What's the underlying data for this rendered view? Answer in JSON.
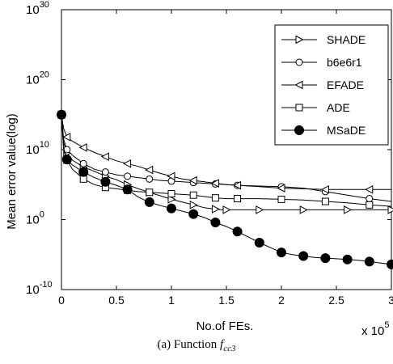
{
  "chart_data": {
    "type": "line",
    "title": "",
    "xlabel": "No.of FEs.",
    "x_multiplier": "x 10",
    "x_multiplier_exponent": "5",
    "ylabel": "Mean error value(log)",
    "yscale": "log",
    "xlim": [
      0,
      3
    ],
    "ylim_exponent": [
      -10,
      30
    ],
    "x_ticks": [
      "0",
      "0.5",
      "1",
      "1.5",
      "2",
      "2.5",
      "3"
    ],
    "y_ticks": [
      {
        "base": "10",
        "exp": "30"
      },
      {
        "base": "10",
        "exp": "20"
      },
      {
        "base": "10",
        "exp": "10"
      },
      {
        "base": "10",
        "exp": "0"
      },
      {
        "base": "10",
        "exp": "-10"
      }
    ],
    "legend_position": "top-right",
    "grid": false,
    "series": [
      {
        "name": "SHADE",
        "marker": "triangle-right",
        "filled": false,
        "x": [
          0,
          0.02,
          0.05,
          0.1,
          0.2,
          0.3,
          0.4,
          0.5,
          0.6,
          0.7,
          0.8,
          0.9,
          1.0,
          1.1,
          1.2,
          1.3,
          1.4,
          1.45,
          1.5,
          1.6,
          1.8,
          2.0,
          2.2,
          2.4,
          2.6,
          2.8,
          3.0
        ],
        "log10_y": [
          15,
          11,
          9.5,
          8.5,
          7.5,
          6.9,
          6.2,
          5.7,
          5.0,
          4.4,
          3.9,
          3.4,
          2.9,
          2.5,
          2.1,
          1.7,
          1.5,
          1.4,
          1.4,
          1.4,
          1.4,
          1.4,
          1.4,
          1.4,
          1.4,
          1.4,
          1.4
        ]
      },
      {
        "name": "b6e6r1",
        "marker": "circle",
        "filled": false,
        "x": [
          0,
          0.02,
          0.05,
          0.1,
          0.2,
          0.3,
          0.4,
          0.5,
          0.6,
          0.7,
          0.8,
          0.9,
          1.0,
          1.1,
          1.2,
          1.3,
          1.4,
          1.5,
          1.6,
          1.8,
          2.0,
          2.2,
          2.4,
          2.6,
          2.8,
          3.0
        ],
        "log10_y": [
          15,
          11.5,
          10,
          9.2,
          8.0,
          7.2,
          6.8,
          6.4,
          6.2,
          6.0,
          5.8,
          5.6,
          5.5,
          5.4,
          5.3,
          5.2,
          5.1,
          5.0,
          4.9,
          4.8,
          4.7,
          4.5,
          4.0,
          3.5,
          3.0,
          2.6
        ]
      },
      {
        "name": "EFADE",
        "marker": "triangle-left",
        "filled": false,
        "x": [
          0,
          0.02,
          0.05,
          0.1,
          0.2,
          0.3,
          0.4,
          0.5,
          0.6,
          0.7,
          0.8,
          0.9,
          1.0,
          1.1,
          1.2,
          1.3,
          1.4,
          1.5,
          1.6,
          1.8,
          2.0,
          2.2,
          2.4,
          2.6,
          2.8,
          3.0
        ],
        "log10_y": [
          15,
          13,
          11.8,
          11.2,
          10.3,
          9.6,
          9.0,
          8.4,
          8.0,
          7.6,
          7.1,
          6.6,
          6.2,
          5.8,
          5.6,
          5.4,
          5.2,
          5.0,
          4.9,
          4.7,
          4.5,
          4.4,
          4.3,
          4.3,
          4.3,
          4.3
        ]
      },
      {
        "name": "ADE",
        "marker": "square",
        "filled": false,
        "x": [
          0,
          0.02,
          0.05,
          0.1,
          0.2,
          0.3,
          0.4,
          0.5,
          0.6,
          0.7,
          0.8,
          0.9,
          1.0,
          1.1,
          1.2,
          1.3,
          1.4,
          1.5,
          1.6,
          1.8,
          2.0,
          2.2,
          2.4,
          2.6,
          2.8,
          3.0
        ],
        "log10_y": [
          15,
          10,
          8.5,
          7.2,
          5.8,
          5.0,
          4.6,
          4.4,
          4.2,
          4.0,
          3.9,
          3.8,
          3.7,
          3.6,
          3.5,
          3.3,
          3.1,
          3.0,
          3.0,
          3.0,
          2.9,
          2.8,
          2.6,
          2.4,
          2.1,
          1.9
        ]
      },
      {
        "name": "MSaDE",
        "marker": "circle",
        "filled": true,
        "x": [
          0,
          0.02,
          0.05,
          0.1,
          0.2,
          0.3,
          0.4,
          0.5,
          0.6,
          0.7,
          0.8,
          0.9,
          1.0,
          1.1,
          1.2,
          1.3,
          1.4,
          1.5,
          1.6,
          1.7,
          1.8,
          1.9,
          2.0,
          2.1,
          2.2,
          2.3,
          2.4,
          2.5,
          2.6,
          2.7,
          2.8,
          2.9,
          3.0
        ],
        "log10_y": [
          15,
          10.2,
          8.6,
          7.8,
          6.8,
          6.0,
          5.4,
          4.9,
          4.3,
          3.2,
          2.5,
          2.0,
          1.6,
          1.2,
          0.8,
          0.3,
          -0.4,
          -1.0,
          -1.7,
          -2.5,
          -3.3,
          -4.0,
          -4.7,
          -5.0,
          -5.2,
          -5.4,
          -5.5,
          -5.6,
          -5.7,
          -5.8,
          -6.0,
          -6.2,
          -6.4
        ]
      }
    ]
  },
  "caption": {
    "prefix": "(a) Function ",
    "func_f": "f",
    "func_sub": "cc3"
  }
}
